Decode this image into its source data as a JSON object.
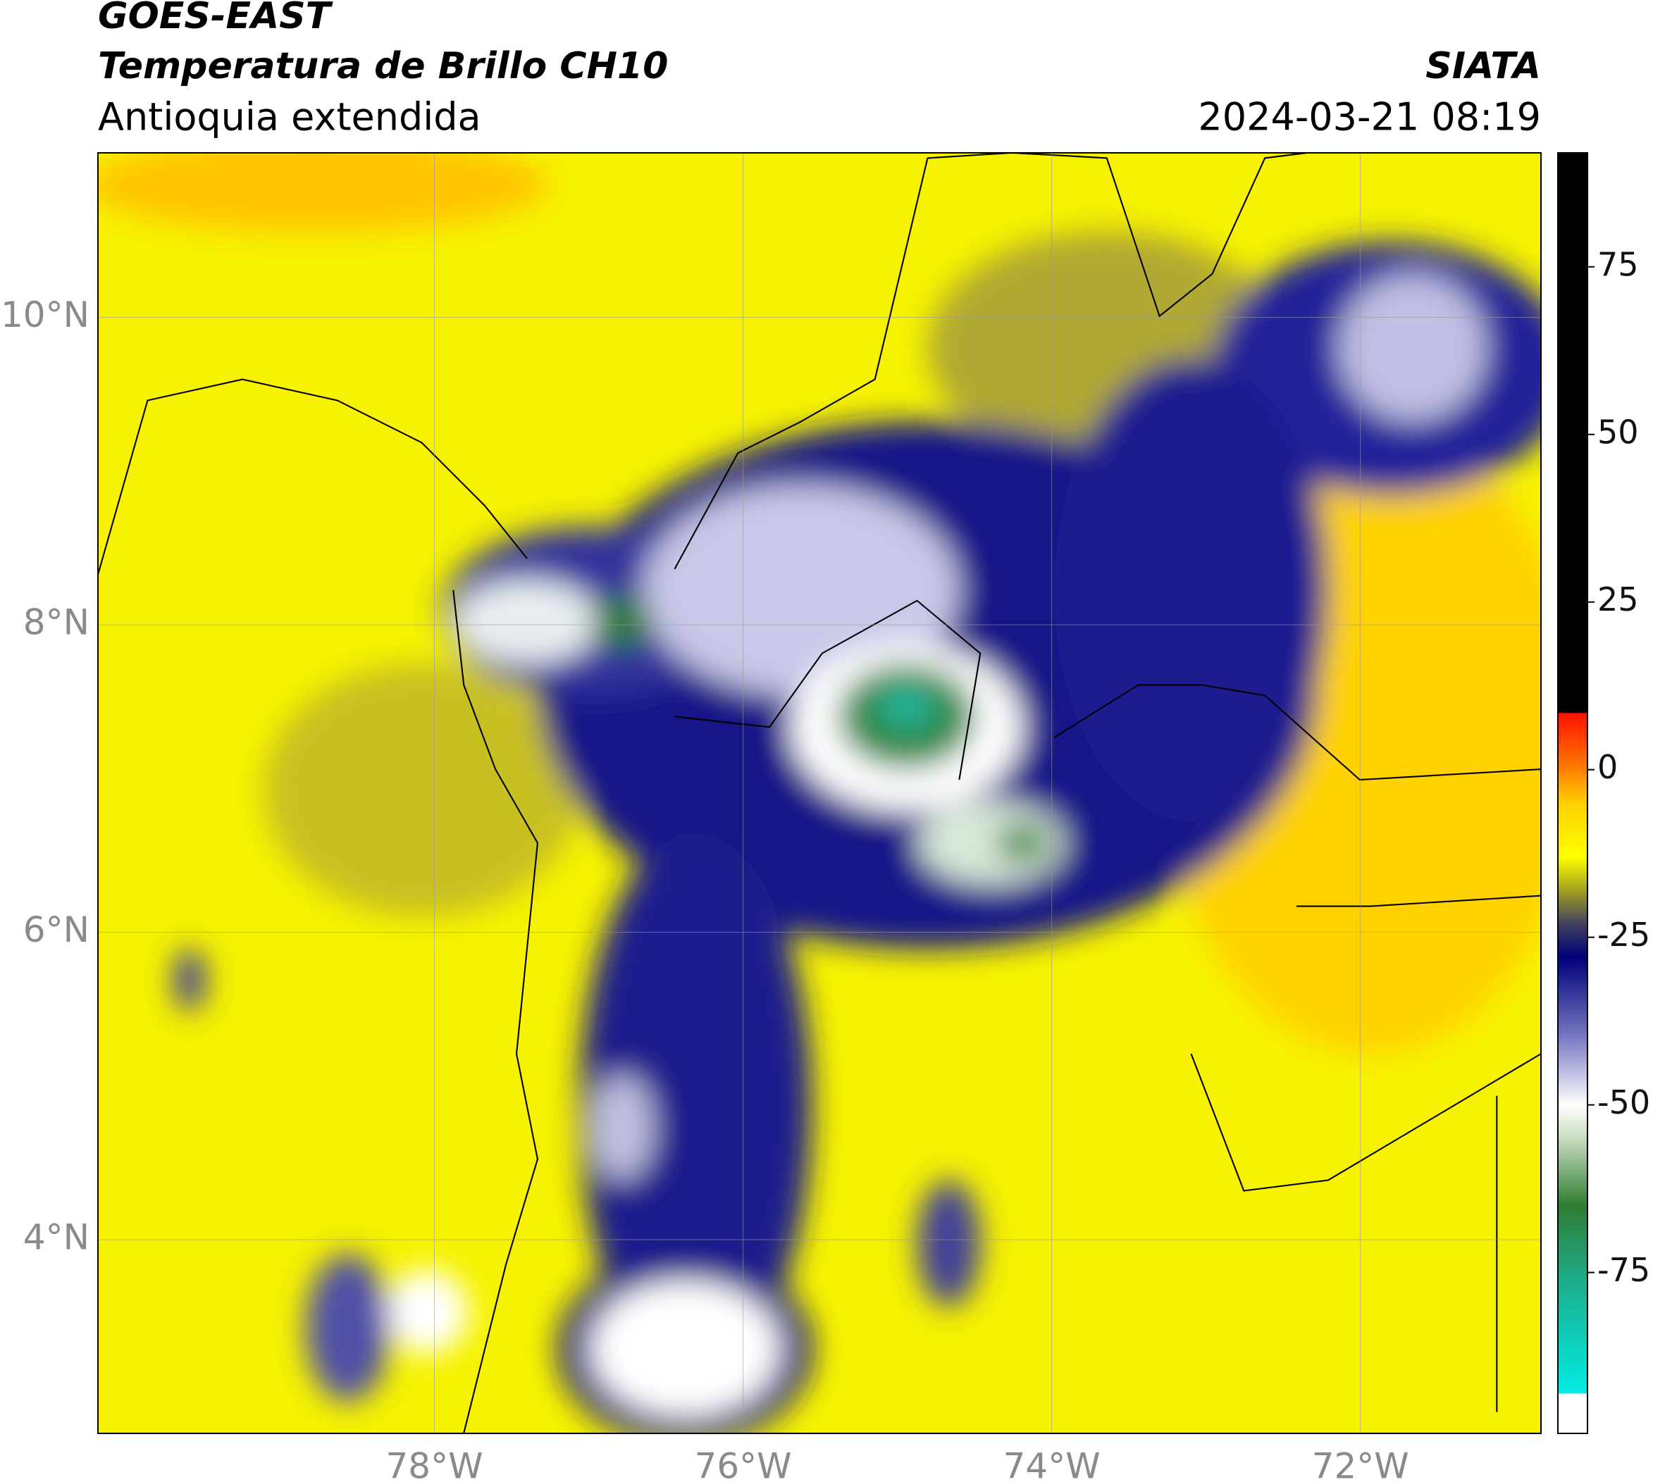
{
  "header": {
    "title": "GOES-EAST",
    "subtitle": "Temperatura de Brillo CH10",
    "region": "Antioquia extendida",
    "source": "SIATA",
    "datetime": "2024-03-21 08:19"
  },
  "map": {
    "xlim": [
      -80.18,
      -70.83
    ],
    "ylim": [
      2.74,
      11.07
    ],
    "xticks": [
      {
        "value": -78,
        "label": "78°W"
      },
      {
        "value": -76,
        "label": "76°W"
      },
      {
        "value": -74,
        "label": "74°W"
      },
      {
        "value": -72,
        "label": "72°W"
      }
    ],
    "yticks": [
      {
        "value": 4,
        "label": "4°N"
      },
      {
        "value": 6,
        "label": "6°N"
      },
      {
        "value": 8,
        "label": "8°N"
      },
      {
        "value": 10,
        "label": "10°N"
      }
    ],
    "grid": true
  },
  "colorbar": {
    "lim": [
      -99,
      92
    ],
    "ticks": [
      -75,
      -50,
      -25,
      0,
      25,
      50,
      75
    ],
    "stops": [
      {
        "value": -99,
        "color": "#ffffff"
      },
      {
        "value": -93,
        "color": "#ffffff"
      },
      {
        "value": -93,
        "color": "#00ece4"
      },
      {
        "value": -75,
        "color": "#20a884"
      },
      {
        "value": -65,
        "color": "#2e7d32"
      },
      {
        "value": -55,
        "color": "#c8dcc0"
      },
      {
        "value": -50,
        "color": "#ffffff"
      },
      {
        "value": -40,
        "color": "#7a7ac4"
      },
      {
        "value": -28,
        "color": "#00007a"
      },
      {
        "value": -23,
        "color": "#404060"
      },
      {
        "value": -18,
        "color": "#a0a020"
      },
      {
        "value": -13,
        "color": "#ffff00"
      },
      {
        "value": -5,
        "color": "#ffd000"
      },
      {
        "value": 0,
        "color": "#ff8000"
      },
      {
        "value": 8.5,
        "color": "#ff1000"
      },
      {
        "value": 8.5,
        "color": "#000000"
      },
      {
        "value": 92,
        "color": "#000000"
      }
    ]
  }
}
